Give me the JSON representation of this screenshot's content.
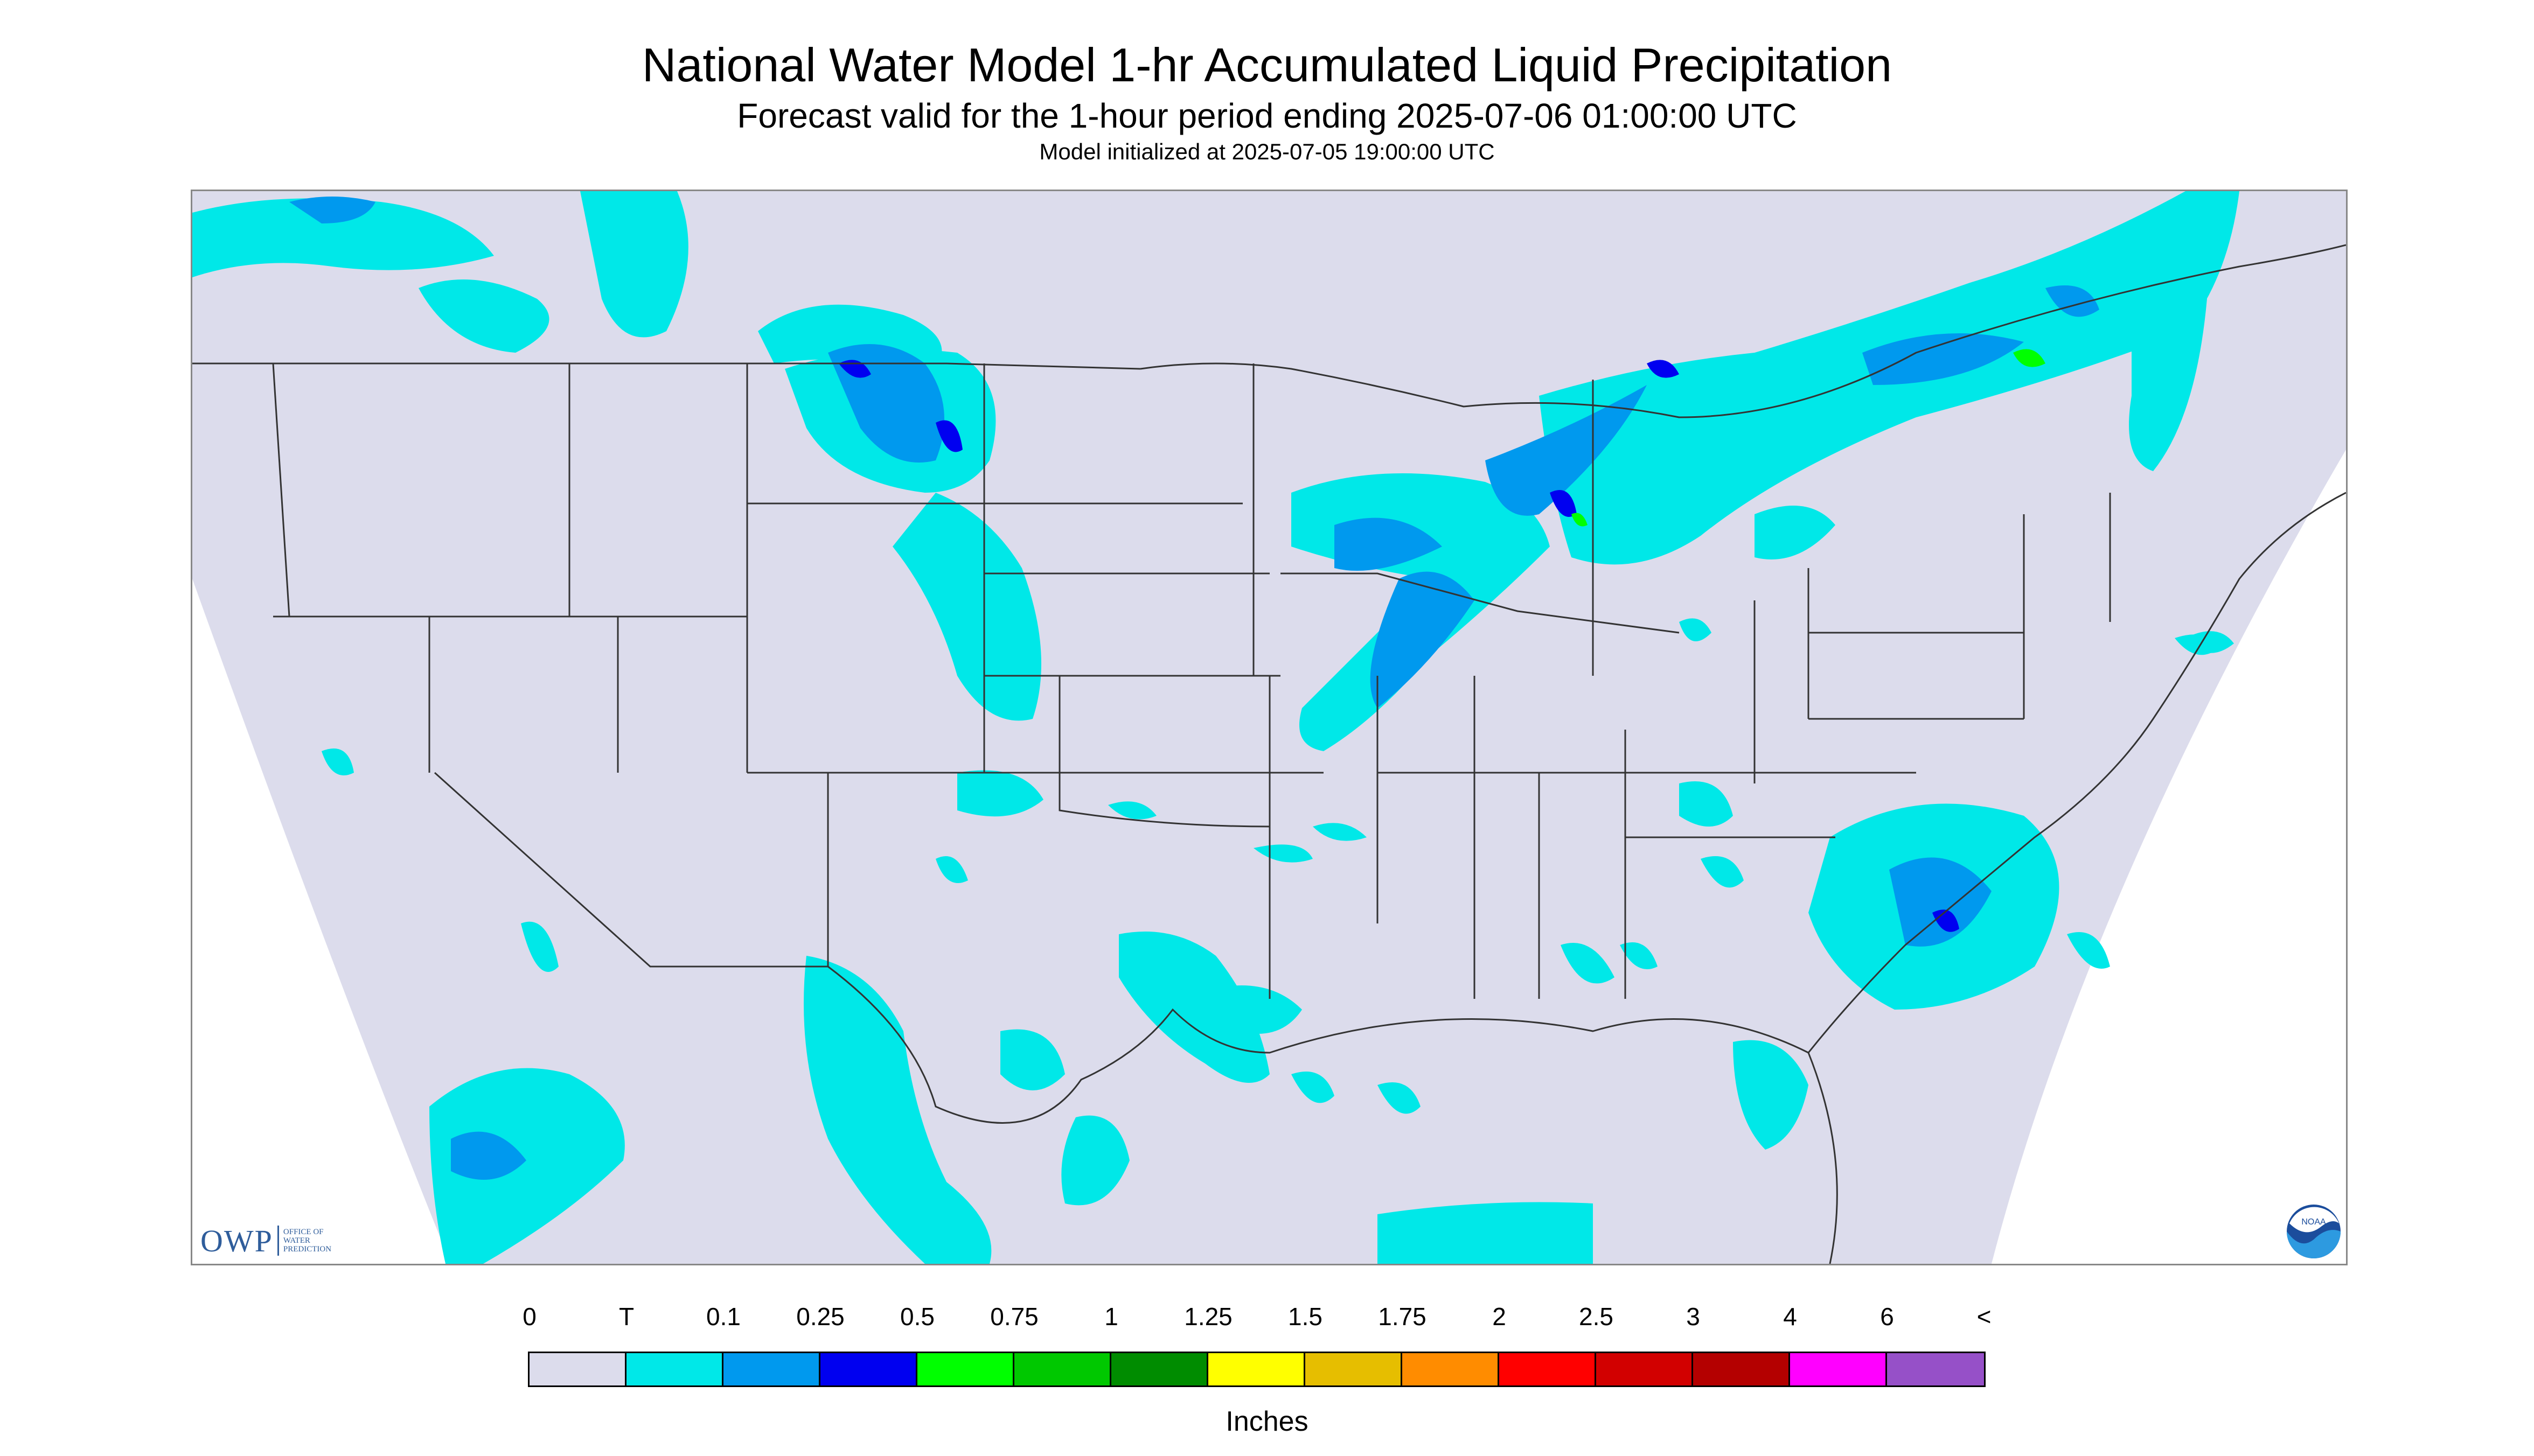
{
  "title": "National Water Model 1-hr Accumulated Liquid Precipitation",
  "subtitle": "Forecast valid for the 1-hour period ending 2025-07-06 01:00:00 UTC",
  "init_text": "Model initialized at 2025-07-05 19:00:00 UTC",
  "logos": {
    "owp": "OWP",
    "owp_sub": "OFFICE OF WATER PREDICTION",
    "noaa": "NOAA"
  },
  "legend": {
    "units": "Inches",
    "labels": [
      "0",
      "T",
      "0.1",
      "0.25",
      "0.5",
      "0.75",
      "1",
      "1.25",
      "1.5",
      "1.75",
      "2",
      "2.5",
      "3",
      "4",
      "6",
      "<"
    ],
    "colors": [
      "#dcdcec",
      "#00e8e8",
      "#0099ee",
      "#0000f0",
      "#00ff00",
      "#00c800",
      "#008c00",
      "#ffff00",
      "#e6be00",
      "#ff8c00",
      "#ff0000",
      "#d20000",
      "#b40000",
      "#ff00ff",
      "#9650c8"
    ]
  },
  "colors": {
    "map_background": "#dcdcec",
    "outside_domain": "#ffffff",
    "boundaries": "#333333"
  }
}
